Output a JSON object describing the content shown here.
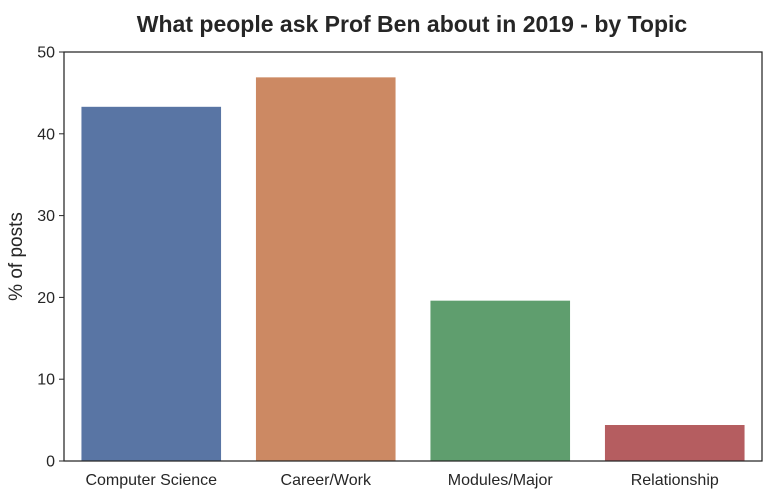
{
  "chart_data": {
    "type": "bar",
    "title": "What people ask Prof Ben about in 2019 - by Topic",
    "xlabel": "",
    "ylabel": "% of posts",
    "categories": [
      "Computer Science",
      "Career/Work",
      "Modules/Major",
      "Relationship"
    ],
    "values": [
      43.3,
      46.9,
      19.6,
      4.4
    ],
    "colors": [
      "#5975a4",
      "#cc8963",
      "#5f9e6e",
      "#b55d60"
    ],
    "ylim": [
      0,
      50
    ],
    "yticks": [
      0,
      10,
      20,
      30,
      40,
      50
    ],
    "grid": false,
    "legend": "none"
  }
}
